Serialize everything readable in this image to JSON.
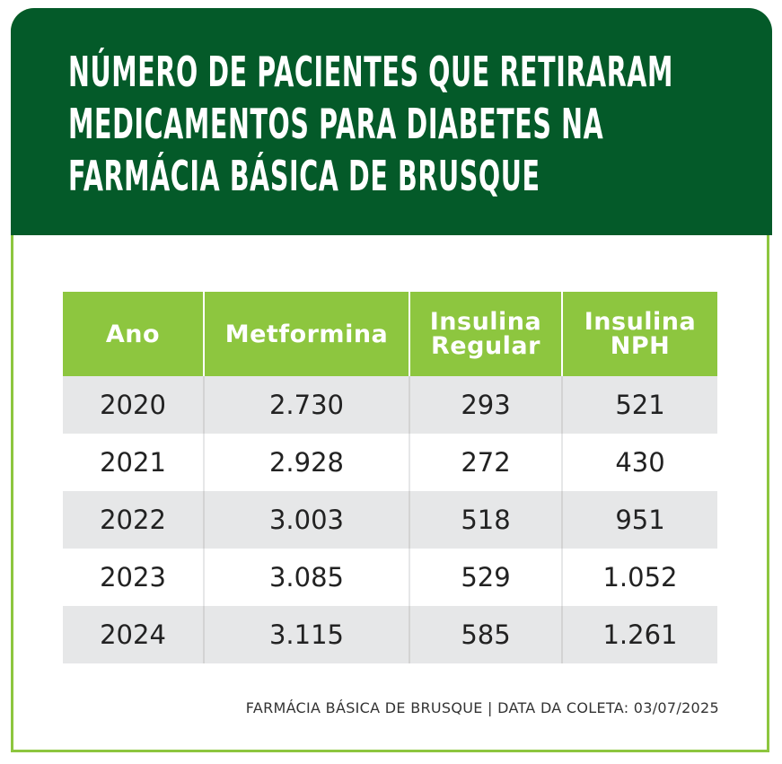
{
  "header": {
    "title": "Número de pacientes que retiraram\nmedicamentos para diabetes na\nFarmácia Básica de Brusque"
  },
  "colors": {
    "header_bg": "#045a29",
    "table_header_bg": "#8dc63f",
    "border": "#8dc63f",
    "stripe": "#e6e7e8"
  },
  "chart_data": {
    "type": "table",
    "title": "Número de pacientes que retiraram medicamentos para diabetes na Farmácia Básica de Brusque",
    "columns": [
      "Ano",
      "Metformina",
      "Insulina\nRegular",
      "Insulina\nNPH"
    ],
    "rows": [
      [
        "2020",
        "2.730",
        "293",
        "521"
      ],
      [
        "2021",
        "2.928",
        "272",
        "430"
      ],
      [
        "2022",
        "3.003",
        "518",
        "951"
      ],
      [
        "2023",
        "3.085",
        "529",
        "1.052"
      ],
      [
        "2024",
        "3.115",
        "585",
        "1.261"
      ]
    ]
  },
  "footer": {
    "source": "FARMÁCIA BÁSICA DE BRUSQUE  |  DATA DA COLETA: 03/07/2025"
  }
}
